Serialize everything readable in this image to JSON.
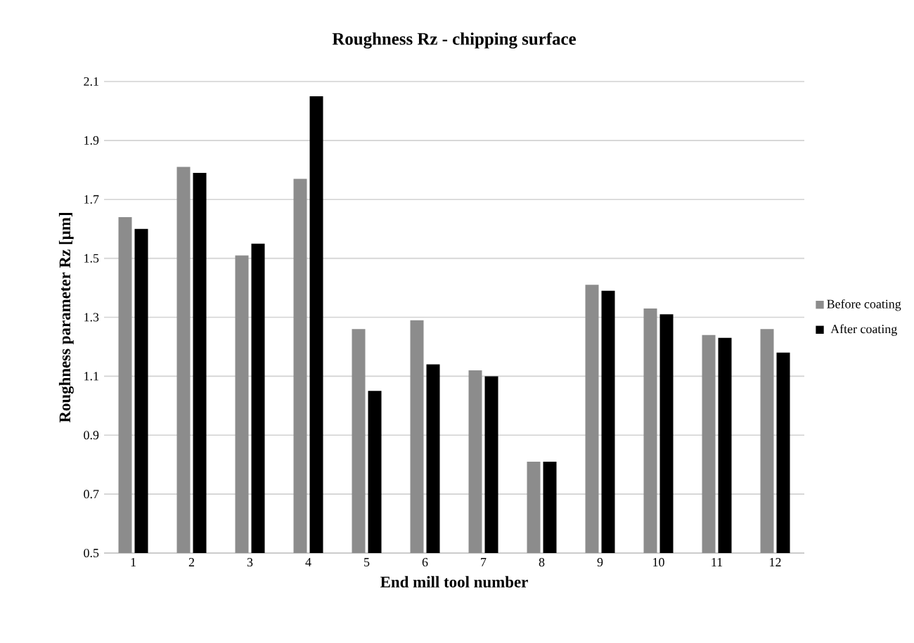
{
  "chart_data": {
    "type": "bar",
    "title": "Roughness Rz - chipping surface",
    "xlabel": "End mill tool number",
    "ylabel": "Roughness parameter Rz [µm]",
    "categories": [
      "1",
      "2",
      "3",
      "4",
      "5",
      "6",
      "7",
      "8",
      "9",
      "10",
      "11",
      "12"
    ],
    "series": [
      {
        "name": "Before coating",
        "color": "#8c8c8c",
        "values": [
          1.64,
          1.81,
          1.51,
          1.77,
          1.26,
          1.29,
          1.12,
          0.81,
          1.41,
          1.33,
          1.24,
          1.26
        ]
      },
      {
        "name": "After coating",
        "color": "#000000",
        "values": [
          1.6,
          1.79,
          1.55,
          2.05,
          1.05,
          1.14,
          1.1,
          0.81,
          1.39,
          1.31,
          1.23,
          1.18
        ]
      }
    ],
    "ylim": [
      0.5,
      2.1
    ],
    "yticks": [
      0.5,
      0.7,
      0.9,
      1.1,
      1.3,
      1.5,
      1.7,
      1.9,
      2.1
    ],
    "grid": "y",
    "legend": "right"
  }
}
